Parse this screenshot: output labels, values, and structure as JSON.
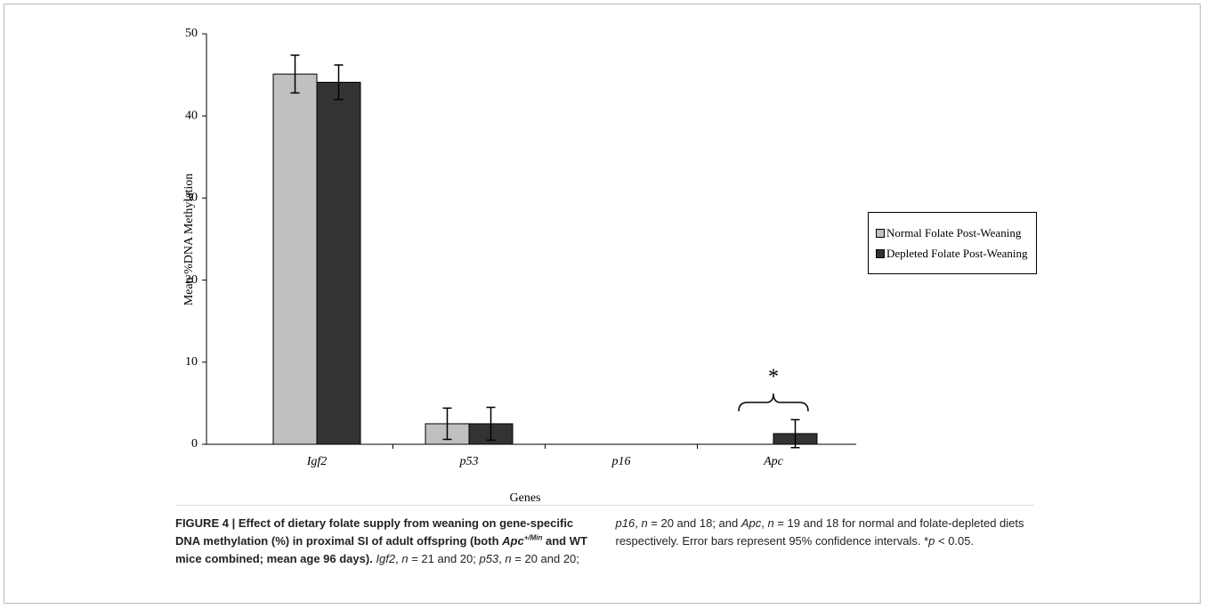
{
  "chart_data": {
    "type": "bar",
    "categories": [
      "Igf2",
      "p53",
      "p16",
      "Apc"
    ],
    "x_label": "Genes",
    "y_label": "Mean %DNA Methylation",
    "ylim": [
      0,
      50
    ],
    "yticks": [
      0,
      10,
      20,
      30,
      40,
      50
    ],
    "series": [
      {
        "name": "Normal Folate Post-Weaning",
        "color": "#c0c0c0",
        "values": [
          45.1,
          2.5,
          0,
          0
        ],
        "errors": [
          2.3,
          1.9,
          0,
          0
        ]
      },
      {
        "name": "Depleted Folate Post-Weaning",
        "color": "#333333",
        "values": [
          44.1,
          2.5,
          0,
          1.3
        ],
        "errors": [
          2.1,
          2.0,
          0,
          1.7
        ]
      }
    ],
    "annotation": "*",
    "legend": "right"
  },
  "caption": [
    "FIGURE 4 | Effect of dietary folate supply from weaning on gene-specific DNA methylation (%) in proximal SI of adult offspring (both ",
    "Apc",
    "+/Min",
    " and WT mice combined; mean age 96 days).",
    "Igf2",
    ", ",
    "n",
    " = 21 and 20; ",
    "p53",
    ", ",
    "n",
    " = 20 and 20; ",
    "p16",
    ", ",
    "n",
    " = 20 and 18; and ",
    "Apc",
    ", ",
    "n",
    " = 19 and 18 for normal and folate-depleted diets respectively. Error bars represent 95% confidence intervals. *",
    "p",
    " < 0.05."
  ]
}
